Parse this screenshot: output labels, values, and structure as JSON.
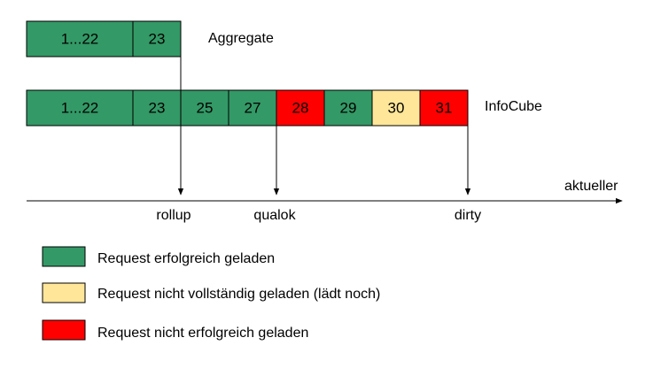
{
  "colors": {
    "green": "#339966",
    "yellow": "#FFE699",
    "red": "#FF0000",
    "line": "#000000"
  },
  "aggregate": {
    "label": "Aggregate",
    "cells": [
      {
        "text": "1...22",
        "status": "green"
      },
      {
        "text": "23",
        "status": "green"
      }
    ]
  },
  "infocube": {
    "label": "InfoCube",
    "cells": [
      {
        "text": "1...22",
        "status": "green"
      },
      {
        "text": "23",
        "status": "green"
      },
      {
        "text": "25",
        "status": "green"
      },
      {
        "text": "27",
        "status": "green"
      },
      {
        "text": "28",
        "status": "red"
      },
      {
        "text": "29",
        "status": "green"
      },
      {
        "text": "30",
        "status": "yellow"
      },
      {
        "text": "31",
        "status": "red"
      }
    ]
  },
  "axis": {
    "label": "aktueller"
  },
  "markers": [
    {
      "label": "rollup"
    },
    {
      "label": "qualok"
    },
    {
      "label": "dirty"
    }
  ],
  "legend": [
    {
      "status": "green",
      "label": "Request erfolgreich geladen"
    },
    {
      "status": "yellow",
      "label": "Request nicht vollständig geladen (lädt noch)"
    },
    {
      "status": "red",
      "label": "Request nicht erfolgreich geladen"
    }
  ]
}
